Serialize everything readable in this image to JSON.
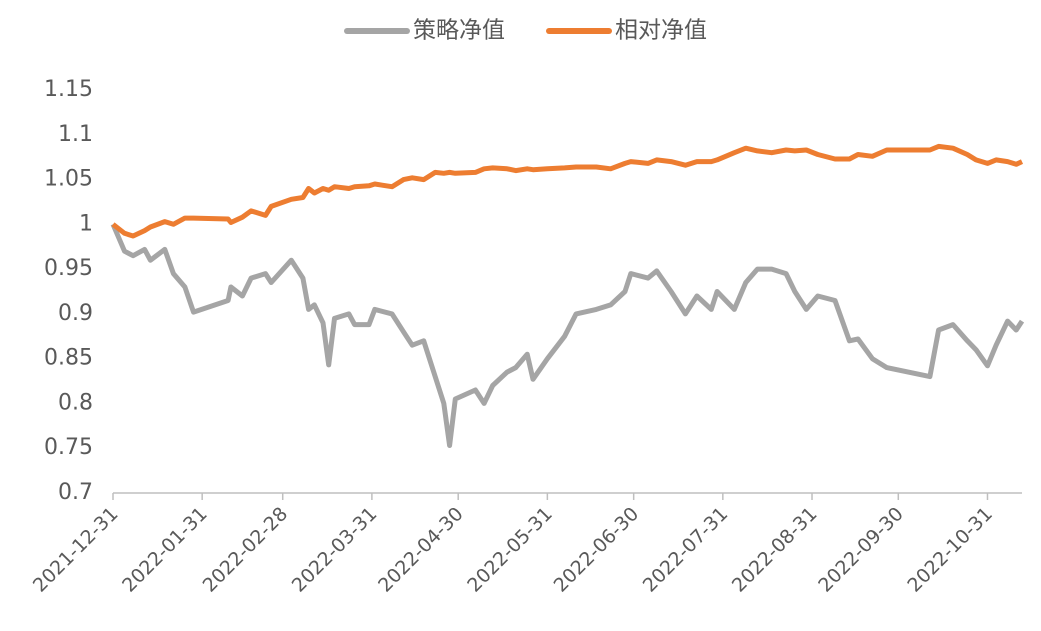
{
  "chart_data": {
    "type": "line",
    "x": [
      "2021-12-31",
      "2022-01-04",
      "2022-01-07",
      "2022-01-11",
      "2022-01-13",
      "2022-01-18",
      "2022-01-21",
      "2022-01-25",
      "2022-01-28",
      "2022-02-09",
      "2022-02-10",
      "2022-02-14",
      "2022-02-17",
      "2022-02-22",
      "2022-02-24",
      "2022-03-03",
      "2022-03-07",
      "2022-03-09",
      "2022-03-11",
      "2022-03-14",
      "2022-03-16",
      "2022-03-18",
      "2022-03-23",
      "2022-03-25",
      "2022-03-30",
      "2022-04-01",
      "2022-04-07",
      "2022-04-11",
      "2022-04-14",
      "2022-04-18",
      "2022-04-22",
      "2022-04-25",
      "2022-04-27",
      "2022-04-29",
      "2022-05-06",
      "2022-05-09",
      "2022-05-12",
      "2022-05-17",
      "2022-05-20",
      "2022-05-24",
      "2022-05-26",
      "2022-05-31",
      "2022-06-06",
      "2022-06-10",
      "2022-06-17",
      "2022-06-22",
      "2022-06-27",
      "2022-06-29",
      "2022-07-05",
      "2022-07-08",
      "2022-07-13",
      "2022-07-18",
      "2022-07-22",
      "2022-07-27",
      "2022-07-29",
      "2022-08-04",
      "2022-08-08",
      "2022-08-12",
      "2022-08-17",
      "2022-08-22",
      "2022-08-25",
      "2022-08-29",
      "2022-09-02",
      "2022-09-08",
      "2022-09-13",
      "2022-09-16",
      "2022-09-21",
      "2022-09-26",
      "2022-10-11",
      "2022-10-14",
      "2022-10-19",
      "2022-10-24",
      "2022-10-27",
      "2022-10-31",
      "2022-11-03",
      "2022-11-07",
      "2022-11-10",
      "2022-11-12"
    ],
    "series": [
      {
        "name": "策略净值",
        "color": "#a5a5a5",
        "values": [
          1.0,
          0.97,
          0.965,
          0.972,
          0.96,
          0.972,
          0.945,
          0.93,
          0.902,
          0.915,
          0.93,
          0.92,
          0.94,
          0.945,
          0.935,
          0.96,
          0.94,
          0.905,
          0.91,
          0.89,
          0.843,
          0.895,
          0.9,
          0.888,
          0.888,
          0.905,
          0.9,
          0.88,
          0.865,
          0.87,
          0.83,
          0.8,
          0.753,
          0.805,
          0.815,
          0.8,
          0.82,
          0.835,
          0.84,
          0.855,
          0.827,
          0.85,
          0.875,
          0.9,
          0.905,
          0.91,
          0.925,
          0.945,
          0.94,
          0.948,
          0.925,
          0.9,
          0.92,
          0.905,
          0.925,
          0.905,
          0.935,
          0.95,
          0.95,
          0.945,
          0.925,
          0.905,
          0.92,
          0.915,
          0.87,
          0.872,
          0.85,
          0.84,
          0.83,
          0.882,
          0.888,
          0.87,
          0.86,
          0.842,
          0.865,
          0.892,
          0.882,
          0.892
        ]
      },
      {
        "name": "相对净值",
        "color": "#ed7d31",
        "values": [
          1.0,
          0.99,
          0.987,
          0.993,
          0.997,
          1.003,
          1.0,
          1.007,
          1.007,
          1.006,
          1.002,
          1.008,
          1.015,
          1.01,
          1.02,
          1.028,
          1.03,
          1.04,
          1.035,
          1.04,
          1.038,
          1.042,
          1.04,
          1.042,
          1.043,
          1.045,
          1.042,
          1.05,
          1.052,
          1.05,
          1.058,
          1.057,
          1.058,
          1.057,
          1.058,
          1.062,
          1.063,
          1.062,
          1.06,
          1.062,
          1.061,
          1.062,
          1.063,
          1.064,
          1.064,
          1.062,
          1.068,
          1.07,
          1.068,
          1.072,
          1.07,
          1.066,
          1.07,
          1.07,
          1.072,
          1.08,
          1.085,
          1.082,
          1.08,
          1.083,
          1.082,
          1.083,
          1.078,
          1.073,
          1.073,
          1.078,
          1.076,
          1.083,
          1.083,
          1.087,
          1.085,
          1.078,
          1.072,
          1.068,
          1.072,
          1.07,
          1.067,
          1.07
        ]
      }
    ],
    "xlim": [
      "2021-12-31",
      "2022-11-12"
    ],
    "xticks": [
      "2021-12-31",
      "2022-01-31",
      "2022-02-28",
      "2022-03-31",
      "2022-04-30",
      "2022-05-31",
      "2022-06-30",
      "2022-07-31",
      "2022-08-31",
      "2022-09-30",
      "2022-10-31"
    ],
    "ylim": [
      0.7,
      1.15
    ],
    "yticks": [
      0.7,
      0.75,
      0.8,
      0.85,
      0.9,
      0.95,
      1,
      1.05,
      1.1,
      1.15
    ],
    "grid": false,
    "legend": "top"
  }
}
